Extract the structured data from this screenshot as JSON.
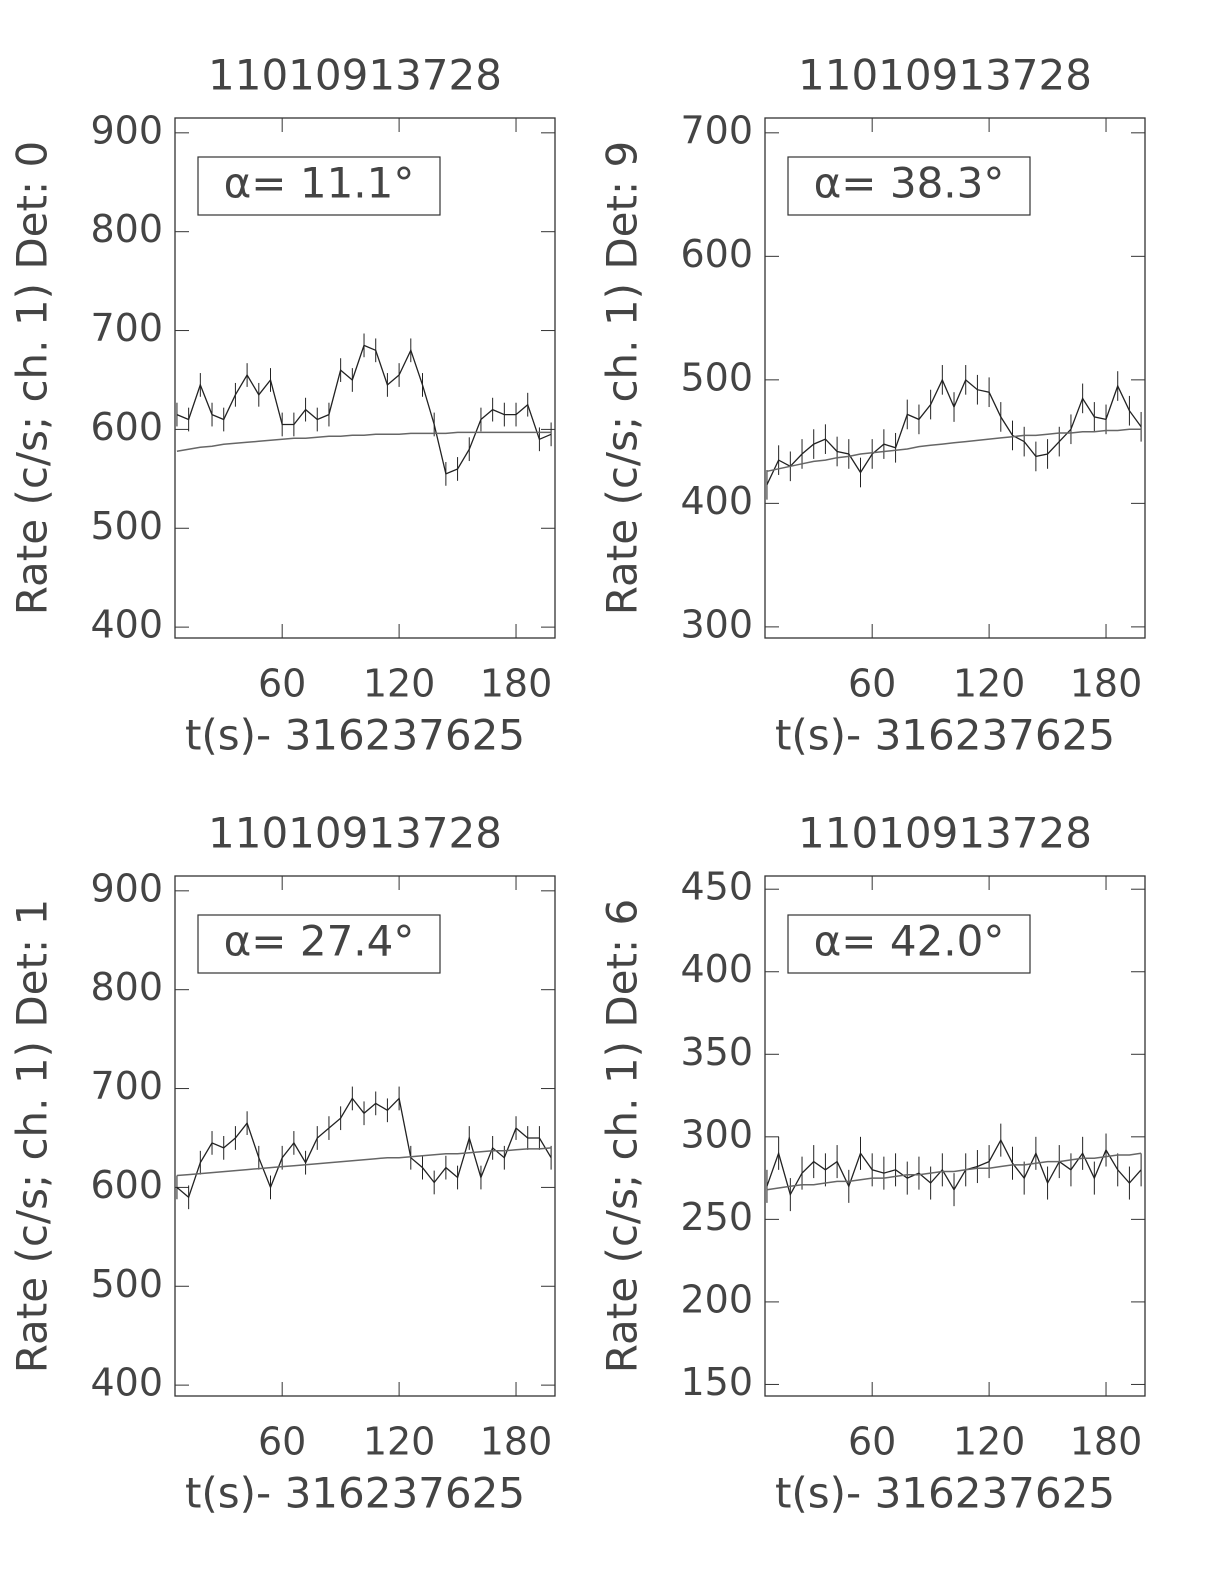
{
  "chart_data": [
    {
      "type": "line",
      "title": "11010913728",
      "ylabel": "Rate (c/s; ch. 1) Det: 0",
      "xlabel": "t(s)- 316237625",
      "annotation": "α= 11.1°",
      "x": [
        6,
        12,
        18,
        24,
        30,
        36,
        42,
        48,
        54,
        60,
        66,
        72,
        78,
        84,
        90,
        96,
        102,
        108,
        114,
        120,
        126,
        132,
        138,
        144,
        150,
        156,
        162,
        168,
        174,
        180,
        186,
        192,
        198
      ],
      "xlim": [
        5,
        200
      ],
      "xticks": [
        60,
        120,
        180
      ],
      "ylim": [
        389,
        915
      ],
      "yticks": [
        400,
        500,
        600,
        700,
        800,
        900
      ],
      "series": [
        {
          "color": "#222222",
          "error": 12,
          "values": [
            615,
            610,
            645,
            615,
            610,
            635,
            655,
            635,
            650,
            605,
            605,
            620,
            610,
            615,
            660,
            650,
            685,
            680,
            645,
            655,
            680,
            645,
            605,
            555,
            560,
            580,
            610,
            620,
            615,
            615,
            625,
            590,
            595
          ]
        },
        {
          "color": "#666666",
          "values": [
            578,
            580,
            582,
            583,
            585,
            586,
            587,
            588,
            589,
            590,
            591,
            591,
            592,
            593,
            593,
            594,
            594,
            595,
            595,
            595,
            596,
            596,
            596,
            596,
            597,
            597,
            597,
            597,
            597,
            597,
            597,
            597,
            597
          ]
        }
      ]
    },
    {
      "type": "line",
      "title": "11010913728",
      "ylabel": "Rate (c/s; ch. 1) Det: 9",
      "xlabel": "t(s)- 316237625",
      "annotation": "α= 38.3°",
      "x": [
        6,
        12,
        18,
        24,
        30,
        36,
        42,
        48,
        54,
        60,
        66,
        72,
        78,
        84,
        90,
        96,
        102,
        108,
        114,
        120,
        126,
        132,
        138,
        144,
        150,
        156,
        162,
        168,
        174,
        180,
        186,
        192,
        198
      ],
      "xlim": [
        5,
        200
      ],
      "xticks": [
        60,
        120,
        180
      ],
      "ylim": [
        291,
        712
      ],
      "yticks": [
        300,
        400,
        500,
        600,
        700
      ],
      "series": [
        {
          "color": "#222222",
          "error": 12,
          "values": [
            415,
            435,
            430,
            440,
            448,
            452,
            442,
            440,
            425,
            440,
            448,
            445,
            472,
            468,
            480,
            500,
            478,
            500,
            492,
            490,
            470,
            455,
            450,
            438,
            440,
            450,
            460,
            485,
            470,
            468,
            495,
            475,
            462
          ]
        },
        {
          "color": "#666666",
          "values": [
            426,
            428,
            430,
            432,
            434,
            435,
            437,
            438,
            440,
            441,
            442,
            443,
            444,
            446,
            447,
            448,
            449,
            450,
            451,
            452,
            453,
            454,
            455,
            455,
            456,
            457,
            457,
            458,
            458,
            459,
            459,
            460,
            460
          ]
        }
      ]
    },
    {
      "type": "line",
      "title": "11010913728",
      "ylabel": "Rate (c/s; ch. 1) Det: 1",
      "xlabel": "t(s)- 316237625",
      "annotation": "α= 27.4°",
      "x": [
        6,
        12,
        18,
        24,
        30,
        36,
        42,
        48,
        54,
        60,
        66,
        72,
        78,
        84,
        90,
        96,
        102,
        108,
        114,
        120,
        126,
        132,
        138,
        144,
        150,
        156,
        162,
        168,
        174,
        180,
        186,
        192,
        198
      ],
      "xlim": [
        5,
        200
      ],
      "xticks": [
        60,
        120,
        180
      ],
      "ylim": [
        389,
        915
      ],
      "yticks": [
        400,
        500,
        600,
        700,
        800,
        900
      ],
      "series": [
        {
          "color": "#222222",
          "error": 12,
          "values": [
            600,
            590,
            625,
            645,
            640,
            650,
            665,
            630,
            600,
            630,
            645,
            625,
            650,
            660,
            670,
            690,
            675,
            685,
            678,
            690,
            630,
            620,
            605,
            620,
            610,
            650,
            610,
            640,
            630,
            660,
            650,
            650,
            630
          ]
        },
        {
          "color": "#666666",
          "values": [
            612,
            613,
            614,
            615,
            616,
            617,
            618,
            619,
            620,
            621,
            622,
            623,
            624,
            625,
            626,
            627,
            628,
            629,
            630,
            630,
            631,
            632,
            633,
            634,
            634,
            635,
            636,
            637,
            637,
            638,
            639,
            639,
            640
          ]
        }
      ]
    },
    {
      "type": "line",
      "title": "11010913728",
      "ylabel": "Rate (c/s; ch. 1) Det: 6",
      "xlabel": "t(s)- 316237625",
      "annotation": "α= 42.0°",
      "x": [
        6,
        12,
        18,
        24,
        30,
        36,
        42,
        48,
        54,
        60,
        66,
        72,
        78,
        84,
        90,
        96,
        102,
        108,
        114,
        120,
        126,
        132,
        138,
        144,
        150,
        156,
        162,
        168,
        174,
        180,
        186,
        192,
        198
      ],
      "xlim": [
        5,
        200
      ],
      "xticks": [
        60,
        120,
        180
      ],
      "ylim": [
        143,
        458
      ],
      "yticks": [
        150,
        200,
        250,
        300,
        350,
        400,
        450
      ],
      "series": [
        {
          "color": "#222222",
          "error": 10,
          "values": [
            270,
            290,
            265,
            278,
            285,
            280,
            285,
            270,
            290,
            280,
            278,
            280,
            275,
            278,
            272,
            280,
            268,
            280,
            282,
            285,
            298,
            284,
            275,
            290,
            272,
            285,
            280,
            290,
            275,
            292,
            280,
            272,
            280
          ]
        },
        {
          "color": "#666666",
          "values": [
            268,
            269,
            270,
            271,
            271,
            272,
            273,
            273,
            274,
            275,
            275,
            276,
            277,
            277,
            278,
            279,
            279,
            280,
            281,
            281,
            282,
            283,
            283,
            284,
            285,
            285,
            286,
            287,
            287,
            288,
            289,
            289,
            290
          ]
        }
      ]
    }
  ]
}
